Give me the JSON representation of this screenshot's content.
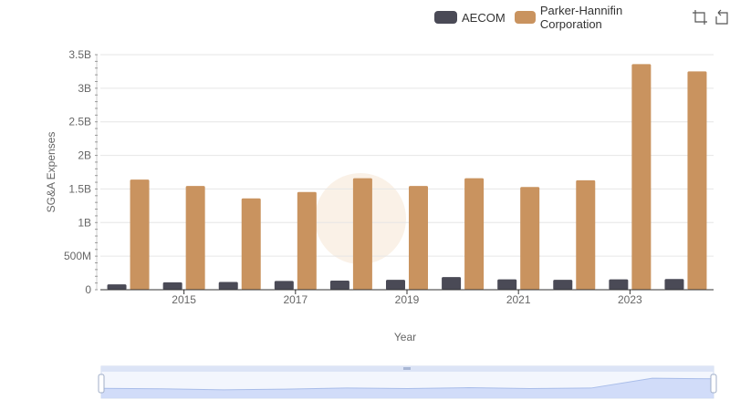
{
  "legend": {
    "items": [
      {
        "label": "AECOM",
        "color": "#4a4a56"
      },
      {
        "label": "Parker-Hannifin Corporation",
        "color": "#c9935f"
      }
    ]
  },
  "toolbar": {
    "icons": [
      "crop-icon",
      "restore-icon"
    ]
  },
  "chart_data": {
    "type": "bar",
    "x": [
      2014,
      2015,
      2016,
      2017,
      2018,
      2019,
      2020,
      2021,
      2022,
      2023,
      2024
    ],
    "series": [
      {
        "name": "AECOM",
        "color": "#4a4a56",
        "values": [
          80000000,
          110000000,
          115000000,
          130000000,
          135000000,
          148000000,
          188000000,
          155000000,
          148000000,
          155000000,
          160000000
        ]
      },
      {
        "name": "Parker-Hannifin Corporation",
        "color": "#c9935f",
        "values": [
          1640000000,
          1545000000,
          1360000000,
          1455000000,
          1660000000,
          1545000000,
          1660000000,
          1530000000,
          1630000000,
          3360000000,
          3250000000
        ]
      }
    ],
    "xlabel": "Year",
    "ylabel": "SG&A Expenses",
    "ylim": [
      0,
      3500000000
    ],
    "yticks": [
      {
        "value": 0,
        "label": "0"
      },
      {
        "value": 500000000,
        "label": "500M"
      },
      {
        "value": 1000000000,
        "label": "1B"
      },
      {
        "value": 1500000000,
        "label": "1.5B"
      },
      {
        "value": 2000000000,
        "label": "2B"
      },
      {
        "value": 2500000000,
        "label": "2.5B"
      },
      {
        "value": 3000000000,
        "label": "3B"
      },
      {
        "value": 3500000000,
        "label": "3.5B"
      }
    ],
    "xtick_labels": [
      {
        "x": 2015,
        "label": "2015"
      },
      {
        "x": 2017,
        "label": "2017"
      },
      {
        "x": 2019,
        "label": "2019"
      },
      {
        "x": 2021,
        "label": "2021"
      },
      {
        "x": 2023,
        "label": "2023"
      }
    ],
    "grid": true,
    "legend_position": "top-right",
    "data_zoom": {
      "start_percent": 0,
      "end_percent": 100
    }
  }
}
